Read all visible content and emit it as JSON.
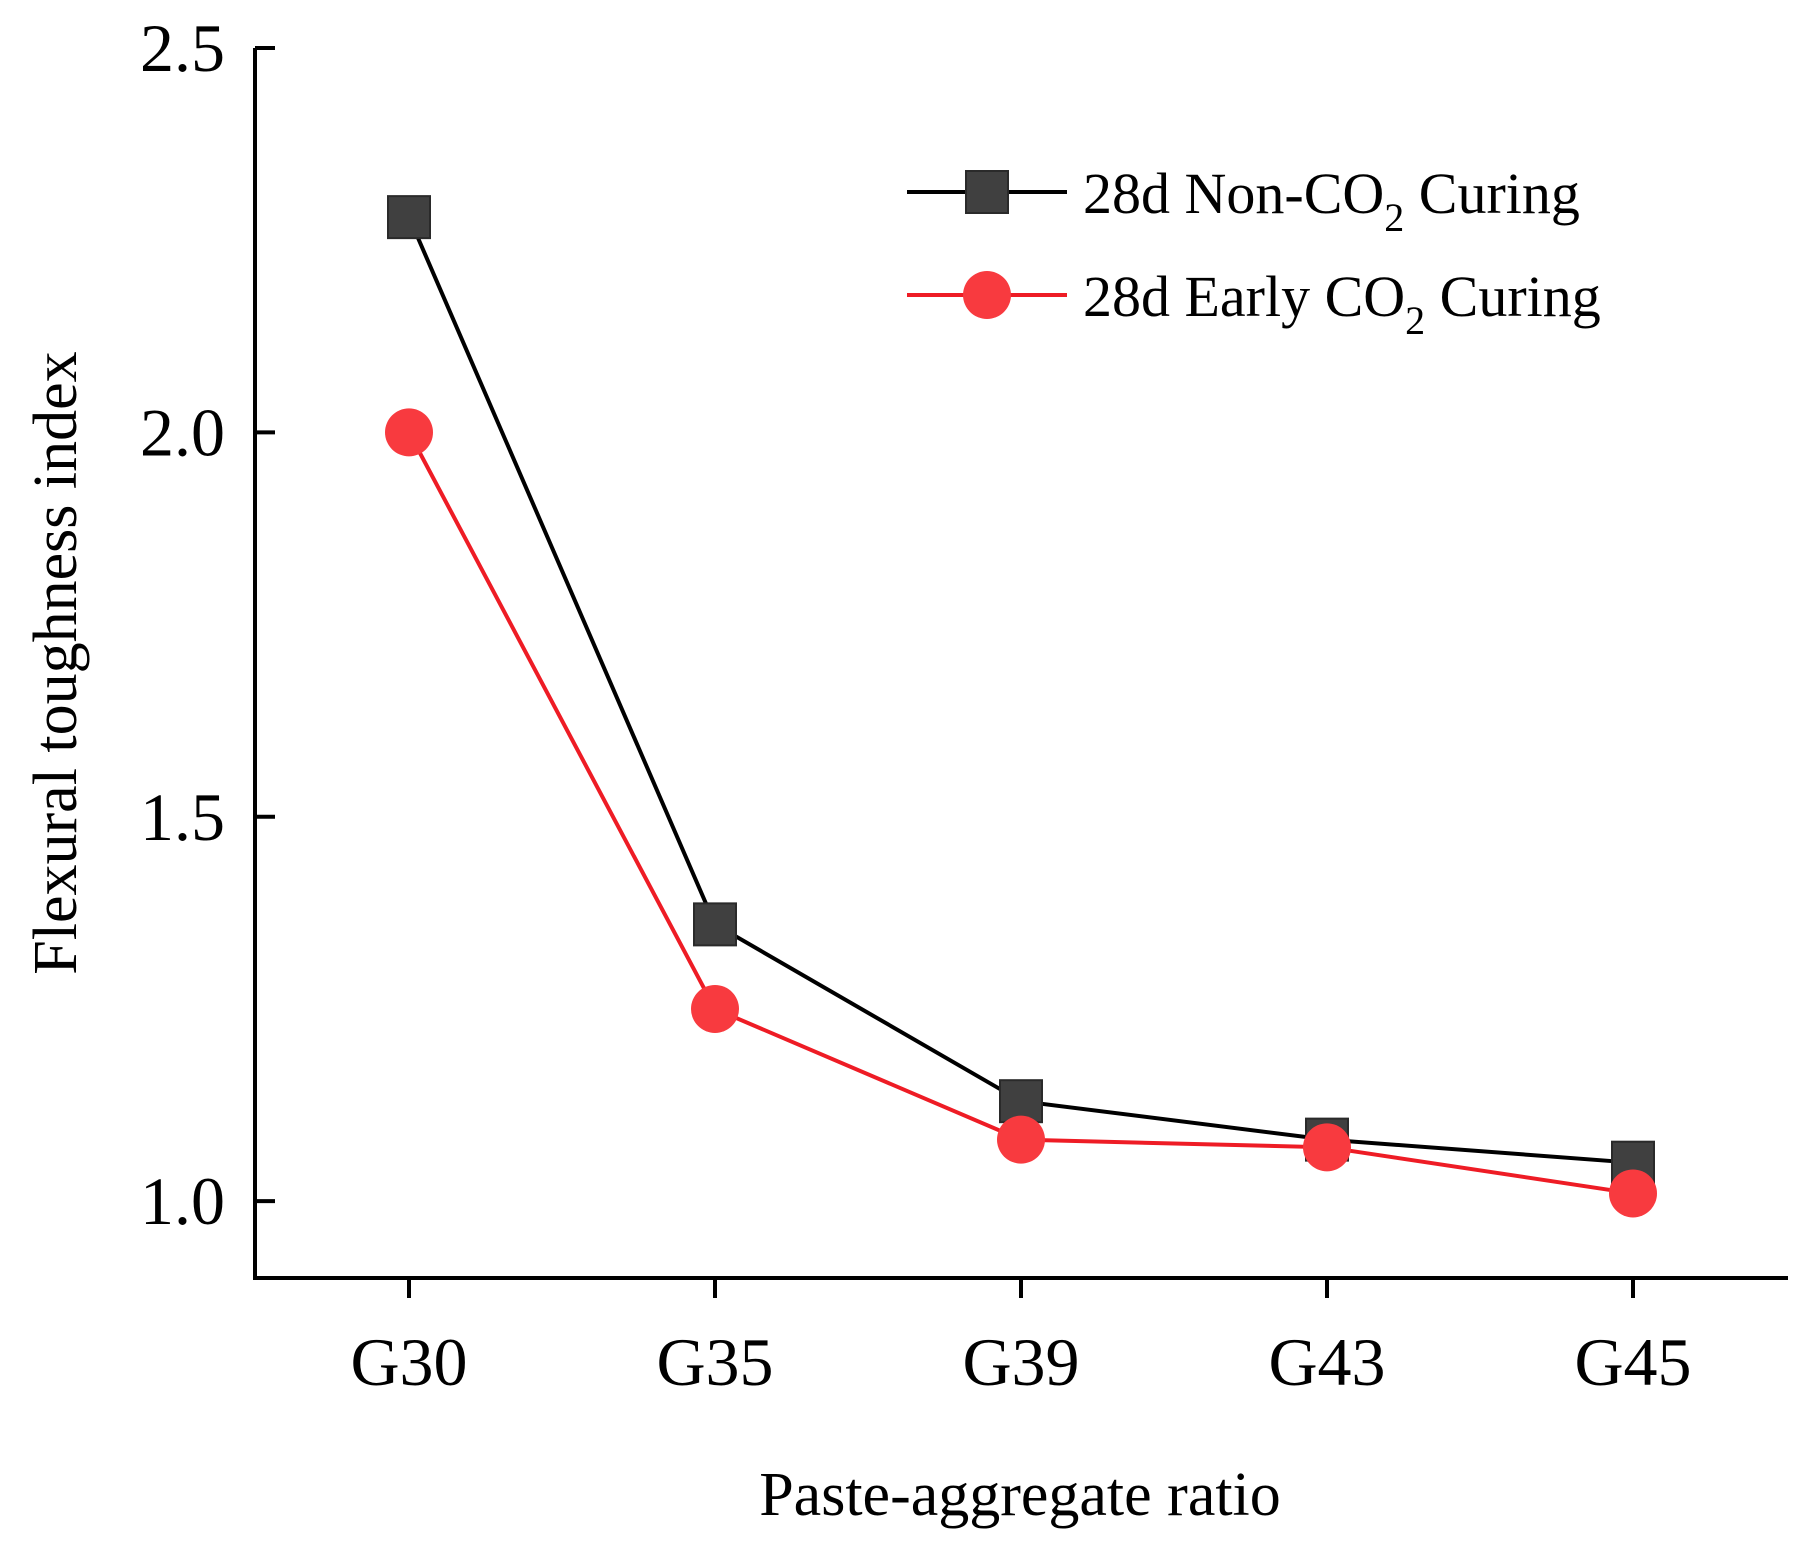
{
  "chart_data": {
    "type": "line",
    "title": "",
    "xlabel": "Paste-aggregate ratio",
    "ylabel": "Flexural toughness index",
    "categories": [
      "G30",
      "G35",
      "G39",
      "G43",
      "G45"
    ],
    "ylim": [
      0.9,
      2.5
    ],
    "yticks": [
      1.0,
      1.5,
      2.0,
      2.5
    ],
    "ytick_labels": [
      "1.0",
      "1.5",
      "2.0",
      "2.5"
    ],
    "legend_position": "top-right",
    "series": [
      {
        "name": "28d Non-CO2 Curing",
        "legend_prefix": "28d Non-CO",
        "legend_subscript": "2",
        "legend_suffix": " Curing",
        "marker": "square",
        "line_color": "#000000",
        "marker_color": "#404040",
        "values": [
          2.28,
          1.36,
          1.13,
          1.08,
          1.05
        ]
      },
      {
        "name": "28d Early CO2 Curing",
        "legend_prefix": "28d Early CO",
        "legend_subscript": "2",
        "legend_suffix": " Curing",
        "marker": "circle",
        "line_color": "#ee1c25",
        "marker_color": "#f83a3f",
        "values": [
          2.0,
          1.25,
          1.08,
          1.07,
          1.01
        ]
      }
    ]
  }
}
